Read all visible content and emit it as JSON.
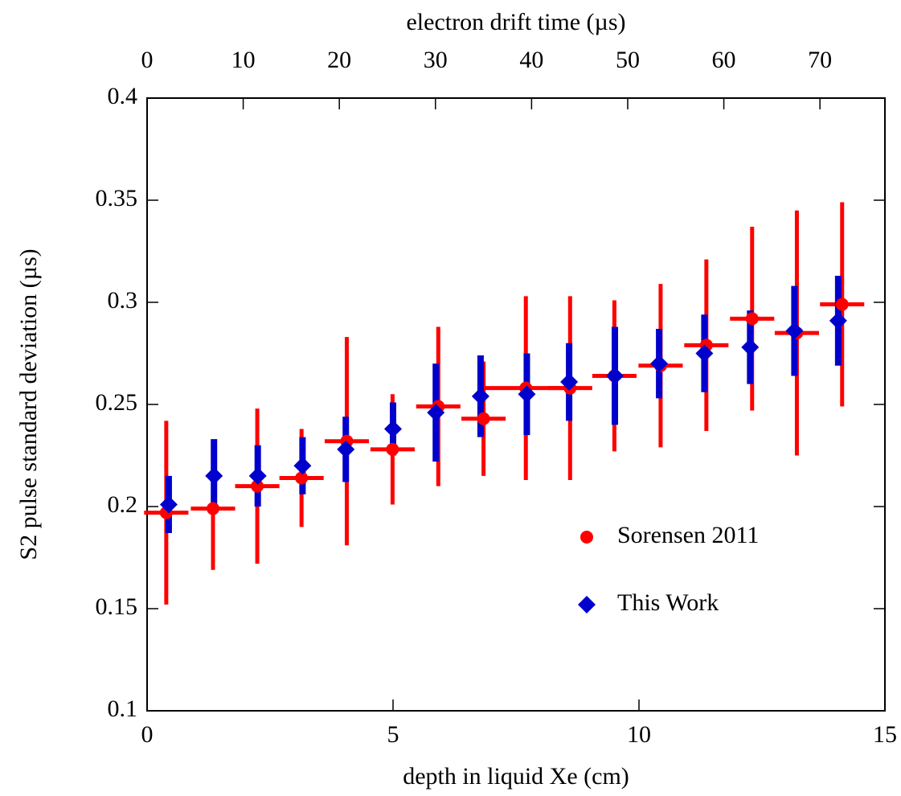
{
  "chart_data": {
    "type": "errorbar",
    "xlabel": "depth in liquid Xe (cm)",
    "ylabel": "S2 pulse standard deviation (µs)",
    "x2label": "electron drift time (µs)",
    "xlim": [
      0,
      15
    ],
    "xticks": [
      0,
      5,
      10,
      15
    ],
    "x2lim": [
      0,
      76.76
    ],
    "x2ticks": [
      0,
      10,
      20,
      30,
      40,
      50,
      60,
      70
    ],
    "ylim": [
      0.1,
      0.4
    ],
    "yticks": [
      0.1,
      0.15,
      0.2,
      0.25,
      0.3,
      0.35,
      0.4
    ],
    "legend": "lower right",
    "series": [
      {
        "name": "Sorensen 2011",
        "color": "#ff0000",
        "marker": "circle",
        "x": [
          0.39,
          1.34,
          2.24,
          3.14,
          4.06,
          4.99,
          5.92,
          6.84,
          7.7,
          8.6,
          9.5,
          10.44,
          11.37,
          12.3,
          13.21,
          14.13
        ],
        "values": [
          0.197,
          0.199,
          0.21,
          0.214,
          0.232,
          0.228,
          0.249,
          0.243,
          0.258,
          0.258,
          0.264,
          0.269,
          0.279,
          0.292,
          0.285,
          0.299
        ],
        "yerr": [
          0.045,
          0.03,
          0.038,
          0.024,
          0.051,
          0.027,
          0.039,
          0.028,
          0.045,
          0.045,
          0.037,
          0.04,
          0.042,
          0.045,
          0.06,
          0.05
        ],
        "xerr": [
          0.45,
          0.45,
          0.45,
          0.45,
          0.45,
          0.45,
          0.45,
          0.45,
          0.92,
          0.45,
          0.45,
          0.45,
          0.45,
          0.45,
          0.45,
          0.45
        ]
      },
      {
        "name": "This Work",
        "color": "#0000cc",
        "marker": "diamond",
        "x": [
          0.44,
          1.36,
          2.25,
          3.16,
          4.04,
          5.0,
          5.87,
          6.78,
          7.72,
          8.58,
          9.51,
          10.41,
          11.33,
          12.26,
          13.16,
          14.05
        ],
        "values": [
          0.201,
          0.215,
          0.215,
          0.22,
          0.228,
          0.238,
          0.246,
          0.254,
          0.255,
          0.261,
          0.264,
          0.27,
          0.275,
          0.278,
          0.286,
          0.291
        ],
        "yerr": [
          0.014,
          0.018,
          0.015,
          0.014,
          0.016,
          0.013,
          0.024,
          0.02,
          0.02,
          0.019,
          0.024,
          0.017,
          0.019,
          0.018,
          0.022,
          0.022
        ]
      }
    ]
  }
}
